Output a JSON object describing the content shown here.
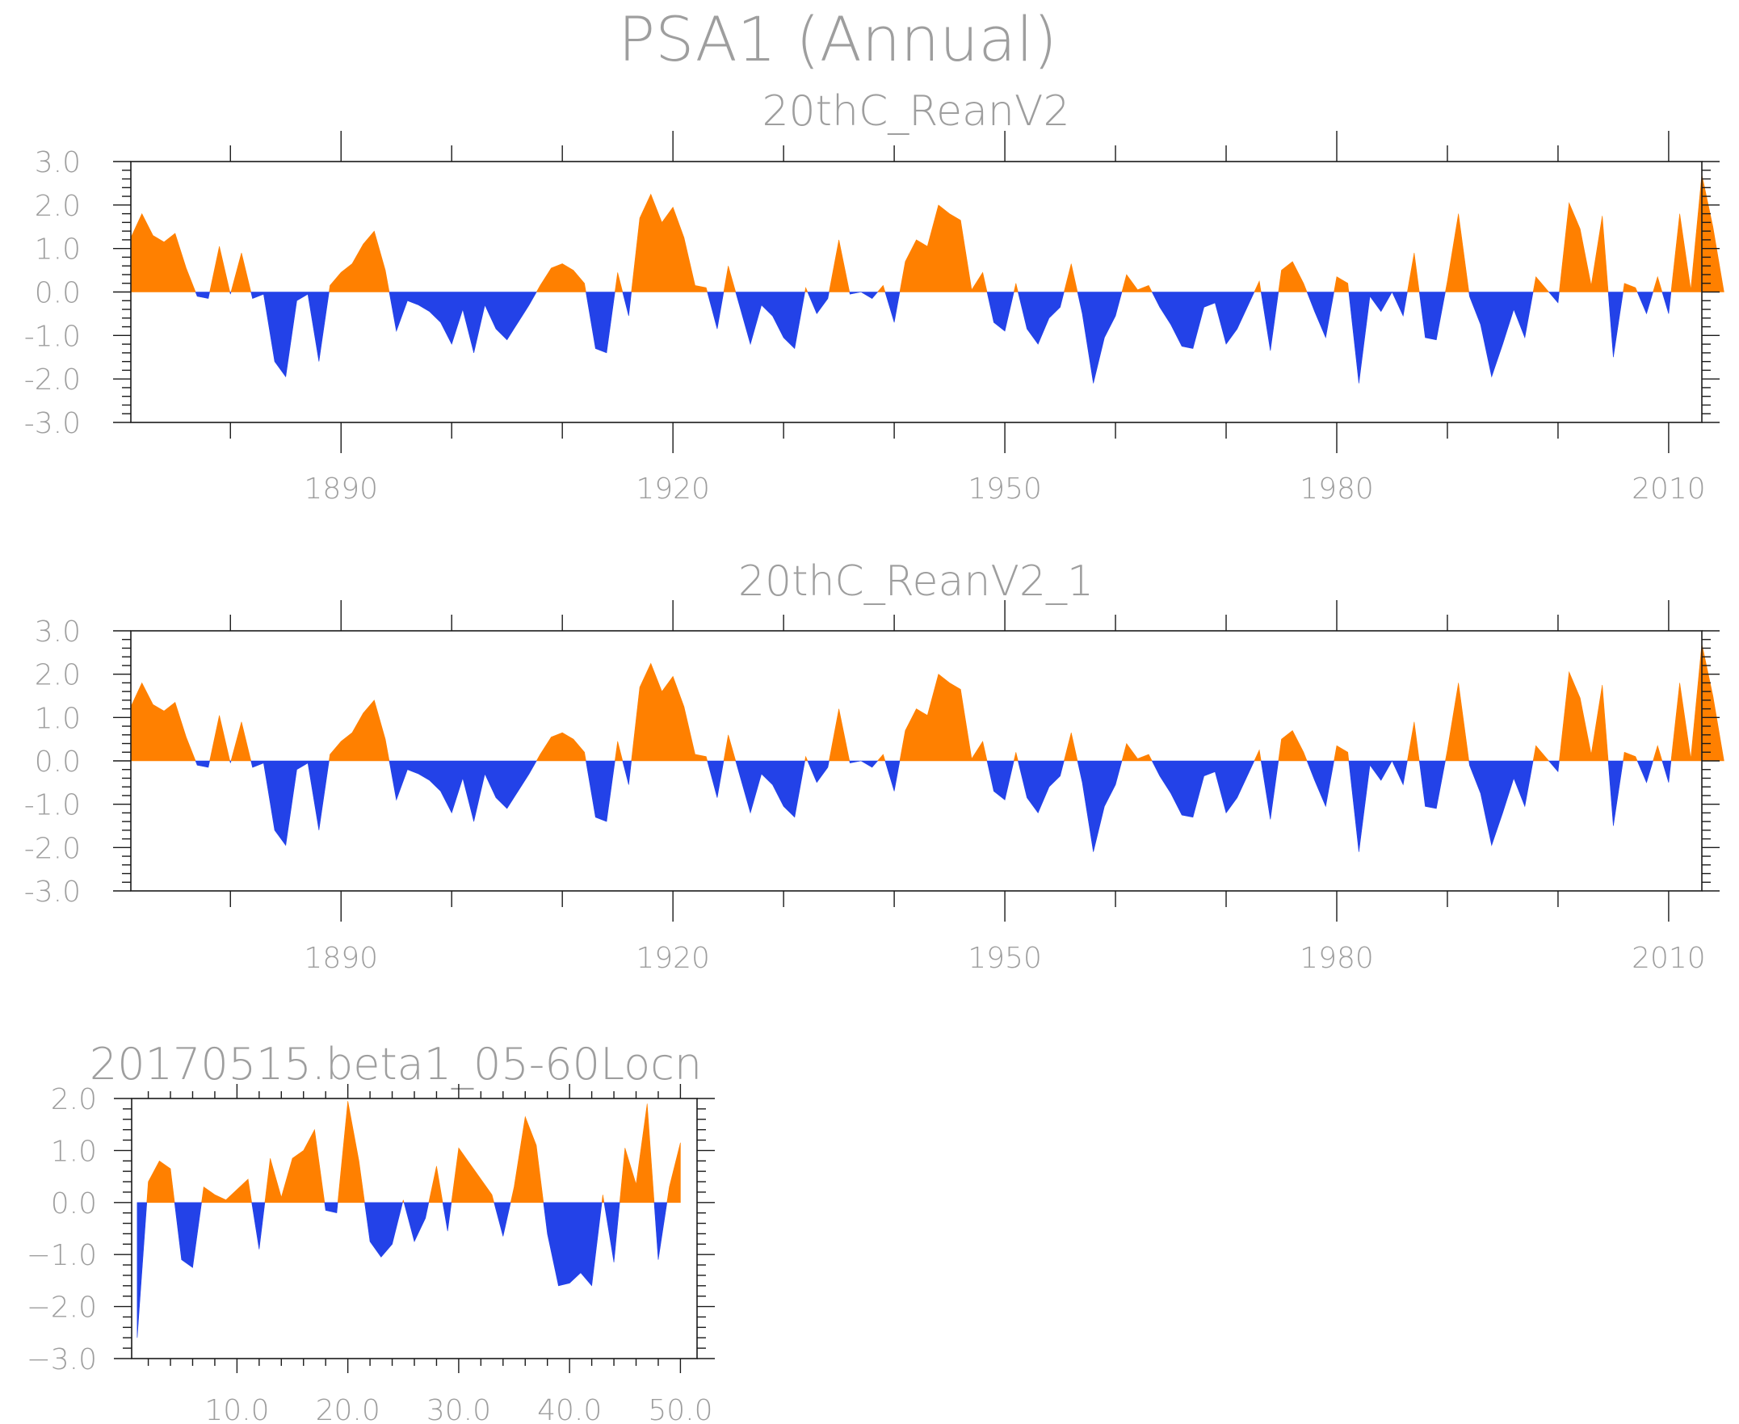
{
  "figure": {
    "title": "PSA1 (Annual)",
    "positive_color": "#ff8000",
    "negative_color": "#2342e8"
  },
  "chart_data": [
    {
      "type": "area",
      "title": "20thC_ReanV2",
      "xlabel": "",
      "ylabel": "",
      "xlim": [
        1871,
        2013
      ],
      "ylim": [
        -3,
        3
      ],
      "x_tick_values": [
        1890,
        1920,
        1950,
        1980,
        2010
      ],
      "x_tick_labels": [
        "1890",
        "1920",
        "1950",
        "1980",
        "2010"
      ],
      "y_tick_values": [
        3,
        2,
        1,
        0,
        -1,
        -2,
        -3
      ],
      "y_tick_labels": [
        "3.0",
        "2.0",
        "1.0",
        "0.0",
        "-1.0",
        "-2.0",
        "-3.0"
      ],
      "x_start": 1871,
      "x_step": 1,
      "values": [
        1.25,
        1.8,
        1.3,
        1.15,
        1.35,
        0.55,
        -0.1,
        -0.15,
        1.05,
        -0.05,
        0.9,
        -0.15,
        -0.05,
        -1.6,
        -1.95,
        -0.2,
        -0.05,
        -1.6,
        0.15,
        0.45,
        0.65,
        1.1,
        1.4,
        0.5,
        -0.9,
        -0.2,
        -0.3,
        -0.45,
        -0.7,
        -1.2,
        -0.4,
        -1.4,
        -0.3,
        -0.85,
        -1.1,
        -0.7,
        -0.3,
        0.15,
        0.55,
        0.65,
        0.5,
        0.2,
        -1.3,
        -1.4,
        0.45,
        -0.55,
        1.7,
        2.25,
        1.6,
        1.95,
        1.25,
        0.15,
        0.1,
        -0.85,
        0.6,
        -0.3,
        -1.2,
        -0.3,
        -0.55,
        -1.05,
        -1.3,
        0.1,
        -0.5,
        -0.15,
        1.2,
        -0.05,
        0.0,
        -0.15,
        0.15,
        -0.7,
        0.7,
        1.2,
        1.05,
        2.0,
        1.8,
        1.65,
        0.05,
        0.45,
        -0.7,
        -0.9,
        0.2,
        -0.85,
        -1.2,
        -0.6,
        -0.35,
        0.65,
        -0.5,
        -2.1,
        -1.05,
        -0.55,
        0.4,
        0.05,
        0.15,
        -0.35,
        -0.75,
        -1.25,
        -1.3,
        -0.35,
        -0.25,
        -1.2,
        -0.85,
        -0.3,
        0.25,
        -1.35,
        0.5,
        0.7,
        0.2,
        -0.45,
        -1.05,
        0.35,
        0.2,
        -2.1,
        -0.1,
        -0.45,
        0.0,
        -0.55,
        0.9,
        -1.05,
        -1.1,
        0.25,
        1.8,
        -0.1,
        -0.75,
        -1.95,
        -1.2,
        -0.4,
        -1.05,
        0.35,
        0.05,
        -0.25,
        2.05,
        1.45,
        0.15,
        1.75,
        -1.5,
        0.2,
        0.1,
        -0.5,
        0.35,
        -0.5,
        1.8,
        0.05,
        2.7,
        1.5,
        0.0
      ]
    },
    {
      "type": "area",
      "title": "20thC_ReanV2_1",
      "xlabel": "",
      "ylabel": "",
      "xlim": [
        1871,
        2013
      ],
      "ylim": [
        -3,
        3
      ],
      "x_tick_values": [
        1890,
        1920,
        1950,
        1980,
        2010
      ],
      "x_tick_labels": [
        "1890",
        "1920",
        "1950",
        "1980",
        "2010"
      ],
      "y_tick_values": [
        3,
        2,
        1,
        0,
        -1,
        -2,
        -3
      ],
      "y_tick_labels": [
        "3.0",
        "2.0",
        "1.0",
        "0.0",
        "-1.0",
        "-2.0",
        "-3.0"
      ],
      "x_start": 1871,
      "x_step": 1,
      "values": [
        1.25,
        1.8,
        1.3,
        1.15,
        1.35,
        0.55,
        -0.1,
        -0.15,
        1.05,
        -0.05,
        0.9,
        -0.15,
        -0.05,
        -1.6,
        -1.95,
        -0.2,
        -0.05,
        -1.6,
        0.15,
        0.45,
        0.65,
        1.1,
        1.4,
        0.5,
        -0.9,
        -0.2,
        -0.3,
        -0.45,
        -0.7,
        -1.2,
        -0.4,
        -1.4,
        -0.3,
        -0.85,
        -1.1,
        -0.7,
        -0.3,
        0.15,
        0.55,
        0.65,
        0.5,
        0.2,
        -1.3,
        -1.4,
        0.45,
        -0.55,
        1.7,
        2.25,
        1.6,
        1.95,
        1.25,
        0.15,
        0.1,
        -0.85,
        0.6,
        -0.3,
        -1.2,
        -0.3,
        -0.55,
        -1.05,
        -1.3,
        0.1,
        -0.5,
        -0.15,
        1.2,
        -0.05,
        0.0,
        -0.15,
        0.15,
        -0.7,
        0.7,
        1.2,
        1.05,
        2.0,
        1.8,
        1.65,
        0.05,
        0.45,
        -0.7,
        -0.9,
        0.2,
        -0.85,
        -1.2,
        -0.6,
        -0.35,
        0.65,
        -0.5,
        -2.1,
        -1.05,
        -0.55,
        0.4,
        0.05,
        0.15,
        -0.35,
        -0.75,
        -1.25,
        -1.3,
        -0.35,
        -0.25,
        -1.2,
        -0.85,
        -0.3,
        0.25,
        -1.35,
        0.5,
        0.7,
        0.2,
        -0.45,
        -1.05,
        0.35,
        0.2,
        -2.1,
        -0.1,
        -0.45,
        0.0,
        -0.55,
        0.9,
        -1.05,
        -1.1,
        0.25,
        1.8,
        -0.1,
        -0.75,
        -1.95,
        -1.2,
        -0.4,
        -1.05,
        0.35,
        0.05,
        -0.25,
        2.05,
        1.45,
        0.15,
        1.75,
        -1.5,
        0.2,
        0.1,
        -0.5,
        0.35,
        -0.5,
        1.8,
        0.05,
        2.7,
        1.5,
        0.0
      ]
    },
    {
      "type": "area",
      "title": "20170515.beta1_05-60Locn",
      "xlabel": "",
      "ylabel": "",
      "xlim": [
        0.5,
        51.5
      ],
      "ylim": [
        -3,
        2
      ],
      "x_tick_values": [
        10,
        20,
        30,
        40,
        50
      ],
      "x_tick_labels": [
        "10.0",
        "20.0",
        "30.0",
        "40.0",
        "50.0"
      ],
      "y_tick_values": [
        2,
        1,
        0,
        -1,
        -2,
        -3
      ],
      "y_tick_labels": [
        "2.0",
        "1.0",
        "0.0",
        "−1.0",
        "−2.0",
        "−3.0"
      ],
      "x_start": 1,
      "x_step": 1,
      "values": [
        -2.6,
        0.4,
        0.8,
        0.65,
        -1.1,
        -1.25,
        0.3,
        0.15,
        0.05,
        0.25,
        0.45,
        -0.9,
        0.85,
        0.1,
        0.85,
        1.0,
        1.4,
        -0.15,
        -0.2,
        1.95,
        0.8,
        -0.75,
        -1.05,
        -0.8,
        0.05,
        -0.75,
        -0.3,
        0.7,
        -0.55,
        1.05,
        0.75,
        0.45,
        0.15,
        -0.65,
        0.3,
        1.65,
        1.1,
        -0.6,
        -1.6,
        -1.55,
        -1.35,
        -1.6,
        0.15,
        -1.15,
        1.05,
        0.35,
        1.9,
        -1.1,
        0.3,
        1.15
      ]
    }
  ]
}
